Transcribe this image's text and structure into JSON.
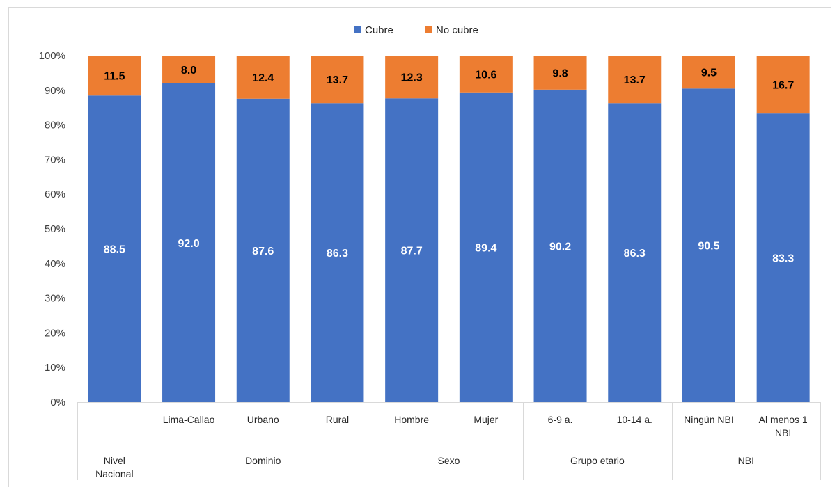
{
  "chart_data": {
    "type": "bar",
    "stacked": true,
    "categories": [
      "Nivel Nacional",
      "Lima-Callao",
      "Urbano",
      "Rural",
      "Hombre",
      "Mujer",
      "6-9 a.",
      "10-14 a.",
      "Ningún NBI",
      "Al menos 1 NBI"
    ],
    "category_lines": [
      [
        "Nivel",
        "Nacional"
      ],
      [
        "Lima-Callao"
      ],
      [
        "Urbano"
      ],
      [
        "Rural"
      ],
      [
        "Hombre"
      ],
      [
        "Mujer"
      ],
      [
        "6-9 a."
      ],
      [
        "10-14 a."
      ],
      [
        "Ningún NBI"
      ],
      [
        "Al menos 1",
        "NBI"
      ]
    ],
    "groups": [
      {
        "label": "",
        "members": [
          0
        ]
      },
      {
        "label": "Dominio",
        "members": [
          1,
          2,
          3
        ]
      },
      {
        "label": "Sexo",
        "members": [
          4,
          5
        ]
      },
      {
        "label": "Grupo etario",
        "members": [
          6,
          7
        ]
      },
      {
        "label": "NBI",
        "members": [
          8,
          9
        ]
      }
    ],
    "series": [
      {
        "name": "Cubre",
        "color": "#4472c4",
        "values": [
          88.5,
          92.0,
          87.6,
          86.3,
          87.7,
          89.4,
          90.2,
          86.3,
          90.5,
          83.3
        ],
        "labels": [
          "88.5",
          "92.0",
          "87.6",
          "86.3",
          "87.7",
          "89.4",
          "90.2",
          "86.3",
          "90.5",
          "83.3"
        ]
      },
      {
        "name": "No cubre",
        "color": "#ed7d31",
        "values": [
          11.5,
          8.0,
          12.4,
          13.7,
          12.3,
          10.6,
          9.8,
          13.7,
          9.5,
          16.7
        ],
        "labels": [
          "11.5",
          "8.0",
          "12.4",
          "13.7",
          "12.3",
          "10.6",
          "9.8",
          "13.7",
          "9.5",
          "16.7"
        ]
      }
    ],
    "ylim": [
      0,
      100
    ],
    "y_ticks": [
      "0%",
      "10%",
      "20%",
      "30%",
      "40%",
      "50%",
      "60%",
      "70%",
      "80%",
      "90%",
      "100%"
    ],
    "grid": false,
    "legend_position": "top-center",
    "title": "",
    "xlabel": "",
    "ylabel": ""
  }
}
